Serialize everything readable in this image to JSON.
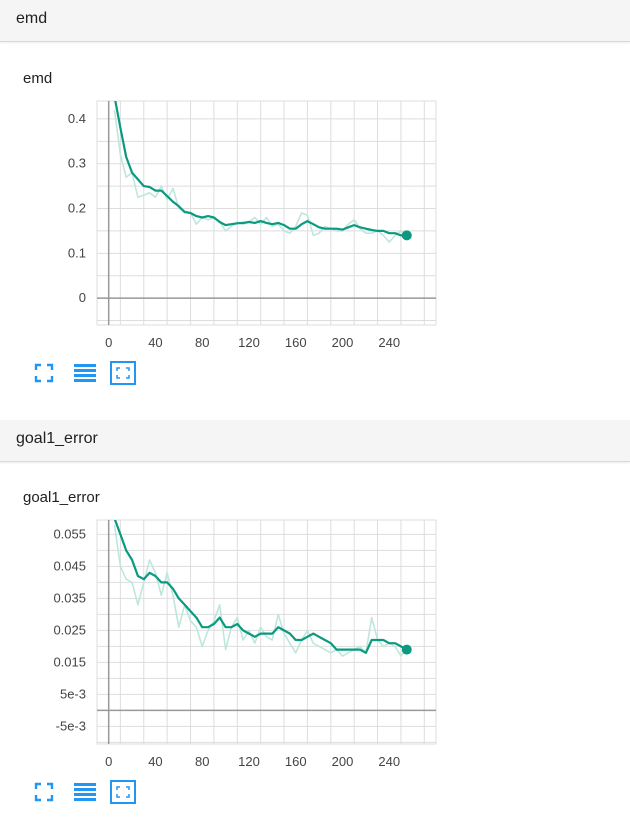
{
  "sections": [
    {
      "header": "emd",
      "card_title": "emd",
      "controls": {
        "fullscreen": "fullscreen-icon",
        "data": "list-icon",
        "fit": "fit-domain-icon"
      }
    },
    {
      "header": "goal1_error",
      "card_title": "goal1_error",
      "controls": {
        "fullscreen": "fullscreen-icon",
        "data": "list-icon",
        "fit": "fit-domain-icon"
      }
    }
  ],
  "colors": {
    "smoothed": "#0b9a7f",
    "raw": "#bfe6dd",
    "grid": "#dddddd",
    "axis": "#999999",
    "icon": "#2196f3"
  },
  "chart_data": [
    {
      "type": "line",
      "title": "emd",
      "xlabel": "",
      "ylabel": "",
      "xlim": [
        -10,
        280
      ],
      "ylim": [
        -0.06,
        0.44
      ],
      "xticks": [
        0,
        40,
        80,
        120,
        160,
        200,
        240
      ],
      "xtick_labels": [
        "0",
        "40",
        "80",
        "120",
        "160",
        "200",
        "240"
      ],
      "yticks": [
        0,
        0.1,
        0.2,
        0.3,
        0.4
      ],
      "ytick_labels": [
        "0",
        "0.1",
        "0.2",
        "0.3",
        "0.4"
      ],
      "grid": true,
      "series": [
        {
          "kind": "raw",
          "x": [
            5,
            10,
            15,
            20,
            25,
            30,
            35,
            40,
            45,
            50,
            55,
            60,
            65,
            70,
            75,
            80,
            85,
            90,
            95,
            100,
            105,
            110,
            115,
            120,
            125,
            130,
            135,
            140,
            145,
            150,
            155,
            160,
            165,
            170,
            175,
            180,
            185,
            190,
            195,
            200,
            205,
            210,
            215,
            220,
            225,
            230,
            235,
            240,
            245,
            250,
            255
          ],
          "y": [
            0.42,
            0.32,
            0.27,
            0.28,
            0.225,
            0.23,
            0.235,
            0.225,
            0.25,
            0.22,
            0.245,
            0.2,
            0.195,
            0.19,
            0.165,
            0.18,
            0.175,
            0.18,
            0.17,
            0.15,
            0.16,
            0.17,
            0.165,
            0.17,
            0.18,
            0.165,
            0.18,
            0.16,
            0.165,
            0.15,
            0.145,
            0.16,
            0.19,
            0.185,
            0.14,
            0.145,
            0.16,
            0.155,
            0.15,
            0.15,
            0.165,
            0.175,
            0.155,
            0.145,
            0.145,
            0.15,
            0.14,
            0.125,
            0.14,
            0.15,
            0.14
          ]
        },
        {
          "kind": "smoothed",
          "x": [
            5,
            10,
            15,
            20,
            25,
            30,
            35,
            40,
            45,
            50,
            55,
            60,
            65,
            70,
            75,
            80,
            85,
            90,
            95,
            100,
            105,
            110,
            115,
            120,
            125,
            130,
            135,
            140,
            145,
            150,
            155,
            160,
            165,
            170,
            175,
            180,
            185,
            190,
            195,
            200,
            205,
            210,
            215,
            220,
            225,
            230,
            235,
            240,
            245,
            250,
            255
          ],
          "y": [
            0.45,
            0.38,
            0.315,
            0.28,
            0.265,
            0.25,
            0.248,
            0.24,
            0.24,
            0.228,
            0.215,
            0.205,
            0.192,
            0.19,
            0.183,
            0.18,
            0.183,
            0.18,
            0.17,
            0.163,
            0.165,
            0.167,
            0.168,
            0.17,
            0.168,
            0.172,
            0.168,
            0.165,
            0.168,
            0.163,
            0.155,
            0.155,
            0.165,
            0.172,
            0.165,
            0.158,
            0.155,
            0.155,
            0.155,
            0.153,
            0.158,
            0.163,
            0.158,
            0.155,
            0.152,
            0.15,
            0.15,
            0.145,
            0.145,
            0.14,
            0.14
          ]
        }
      ]
    },
    {
      "type": "line",
      "title": "goal1_error",
      "xlabel": "",
      "ylabel": "",
      "xlim": [
        -10,
        280
      ],
      "ylim": [
        -0.0105,
        0.0595
      ],
      "xticks": [
        0,
        40,
        80,
        120,
        160,
        200,
        240
      ],
      "xtick_labels": [
        "0",
        "40",
        "80",
        "120",
        "160",
        "200",
        "240"
      ],
      "yticks": [
        -0.005,
        0.005,
        0.015,
        0.025,
        0.035,
        0.045,
        0.055
      ],
      "ytick_labels": [
        "-5e-3",
        "5e-3",
        "0.015",
        "0.025",
        "0.035",
        "0.045",
        "0.055"
      ],
      "grid": true,
      "series": [
        {
          "kind": "raw",
          "x": [
            5,
            10,
            15,
            20,
            25,
            30,
            35,
            40,
            45,
            50,
            55,
            60,
            65,
            70,
            75,
            80,
            85,
            90,
            95,
            100,
            105,
            110,
            115,
            120,
            125,
            130,
            135,
            140,
            145,
            150,
            155,
            160,
            165,
            170,
            175,
            180,
            185,
            190,
            195,
            200,
            205,
            210,
            215,
            220,
            225,
            230,
            235,
            240,
            245,
            250,
            255
          ],
          "y": [
            0.058,
            0.045,
            0.041,
            0.04,
            0.033,
            0.04,
            0.047,
            0.043,
            0.036,
            0.043,
            0.036,
            0.026,
            0.033,
            0.028,
            0.026,
            0.02,
            0.025,
            0.028,
            0.033,
            0.019,
            0.026,
            0.029,
            0.022,
            0.025,
            0.021,
            0.026,
            0.023,
            0.022,
            0.03,
            0.024,
            0.021,
            0.018,
            0.022,
            0.025,
            0.021,
            0.02,
            0.019,
            0.018,
            0.019,
            0.017,
            0.018,
            0.019,
            0.02,
            0.018,
            0.029,
            0.022,
            0.02,
            0.021,
            0.02,
            0.017,
            0.019
          ]
        },
        {
          "kind": "smoothed",
          "x": [
            5,
            10,
            15,
            20,
            25,
            30,
            35,
            40,
            45,
            50,
            55,
            60,
            65,
            70,
            75,
            80,
            85,
            90,
            95,
            100,
            105,
            110,
            115,
            120,
            125,
            130,
            135,
            140,
            145,
            150,
            155,
            160,
            165,
            170,
            175,
            180,
            185,
            190,
            195,
            200,
            205,
            210,
            215,
            220,
            225,
            230,
            235,
            240,
            245,
            250,
            255
          ],
          "y": [
            0.06,
            0.055,
            0.05,
            0.047,
            0.042,
            0.041,
            0.043,
            0.042,
            0.04,
            0.04,
            0.038,
            0.035,
            0.033,
            0.031,
            0.029,
            0.026,
            0.026,
            0.027,
            0.029,
            0.026,
            0.026,
            0.027,
            0.025,
            0.024,
            0.023,
            0.024,
            0.024,
            0.024,
            0.026,
            0.025,
            0.024,
            0.022,
            0.022,
            0.023,
            0.024,
            0.023,
            0.022,
            0.021,
            0.019,
            0.019,
            0.019,
            0.019,
            0.019,
            0.018,
            0.022,
            0.022,
            0.022,
            0.021,
            0.021,
            0.02,
            0.019
          ]
        }
      ]
    }
  ]
}
